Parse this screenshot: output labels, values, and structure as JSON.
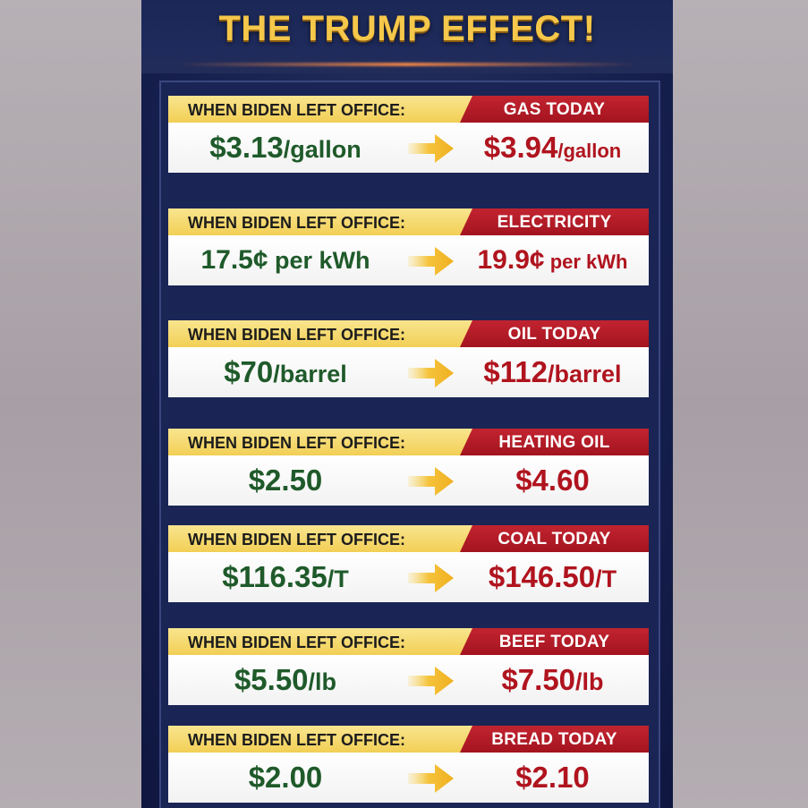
{
  "title": "THE TRUMP EFFECT!",
  "colors": {
    "old_value": "#1f5a2a",
    "new_value": "#b0141e",
    "header_left": "#f2cf55",
    "header_right": "#a3141f",
    "background": "#182251"
  },
  "rows": [
    {
      "label": "WHEN BIDEN LEFT OFFICE:",
      "category": "GAS TODAY",
      "old_main": "$3.13",
      "old_unit": "/gallon",
      "new_main": "$3.94",
      "new_unit": "/gallon"
    },
    {
      "label": "WHEN BIDEN LEFT OFFICE:",
      "category": "ELECTRICITY",
      "old_main": "17.5¢",
      "old_unit": " per kWh",
      "new_main": "19.9¢",
      "new_unit": " per kWh"
    },
    {
      "label": "WHEN BIDEN LEFT OFFICE:",
      "category": "OIL TODAY",
      "old_main": "$70",
      "old_unit": "/barrel",
      "new_main": "$112",
      "new_unit": "/barrel"
    },
    {
      "label": "WHEN BIDEN LEFT OFFICE:",
      "category": "HEATING OIL",
      "old_main": "$2.50",
      "old_unit": "",
      "new_main": "$4.60",
      "new_unit": ""
    },
    {
      "label": "WHEN BIDEN LEFT OFFICE:",
      "category": "COAL TODAY",
      "old_main": "$116.35",
      "old_unit": "/T",
      "new_main": "$146.50",
      "new_unit": "/T"
    },
    {
      "label": "WHEN BIDEN LEFT OFFICE:",
      "category": "BEEF TODAY",
      "old_main": "$5.50",
      "old_unit": "/lb",
      "new_main": "$7.50",
      "new_unit": "/lb"
    },
    {
      "label": "WHEN BIDEN LEFT OFFICE:",
      "category": "BREAD TODAY",
      "old_main": "$2.00",
      "old_unit": "",
      "new_main": "$2.10",
      "new_unit": ""
    }
  ]
}
